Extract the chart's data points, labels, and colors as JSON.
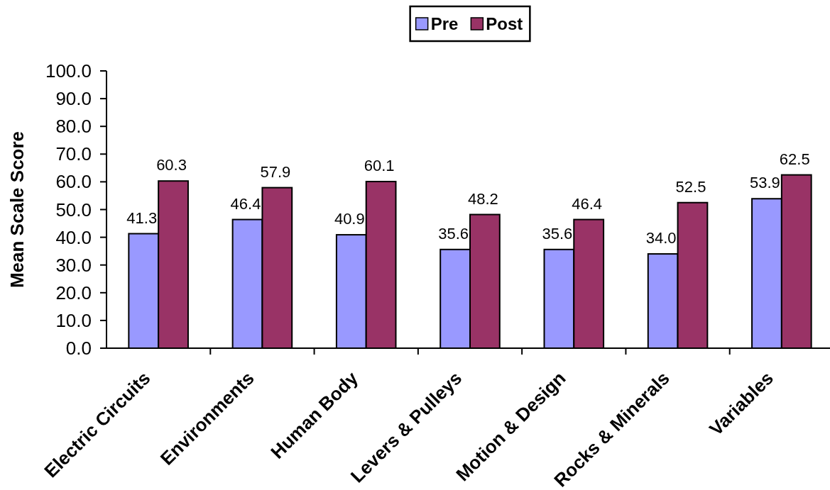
{
  "chart_data": {
    "type": "bar",
    "ylabel": "Mean Scale Score",
    "categories": [
      "Electric Circuits",
      "Environments",
      "Human Body",
      "Levers & Pulleys",
      "Motion & Design",
      "Rocks & Minerals",
      "Variables"
    ],
    "series": [
      {
        "name": "Pre",
        "color": "#9999ff",
        "values": [
          41.3,
          46.4,
          40.9,
          35.6,
          35.6,
          34.0,
          53.9
        ],
        "value_labels": [
          "41.3",
          "46.4",
          "40.9",
          "35.6",
          "35.6",
          "34.0",
          "53.9"
        ]
      },
      {
        "name": "Post",
        "color": "#993366",
        "values": [
          60.3,
          57.9,
          60.1,
          48.2,
          46.4,
          52.5,
          62.5
        ],
        "value_labels": [
          "60.3",
          "57.9",
          "60.1",
          "48.2",
          "46.4",
          "52.5",
          "62.5"
        ]
      }
    ],
    "ylim": [
      0,
      100
    ],
    "yticks": [
      {
        "value": 0,
        "label": "0.0"
      },
      {
        "value": 10,
        "label": "10.0"
      },
      {
        "value": 20,
        "label": "20.0"
      },
      {
        "value": 30,
        "label": "30.0"
      },
      {
        "value": 40,
        "label": "40.0"
      },
      {
        "value": 50,
        "label": "50.0"
      },
      {
        "value": 60,
        "label": "60.0"
      },
      {
        "value": 70,
        "label": "70.0"
      },
      {
        "value": 80,
        "label": "80.0"
      },
      {
        "value": 90,
        "label": "90.0"
      },
      {
        "value": 100,
        "label": "100.0"
      }
    ],
    "legend": "top"
  }
}
